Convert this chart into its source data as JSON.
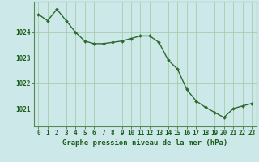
{
  "x": [
    0,
    1,
    2,
    3,
    4,
    5,
    6,
    7,
    8,
    9,
    10,
    11,
    12,
    13,
    14,
    15,
    16,
    17,
    18,
    19,
    20,
    21,
    22,
    23
  ],
  "y": [
    1024.7,
    1024.45,
    1024.9,
    1024.45,
    1024.0,
    1023.65,
    1023.55,
    1023.55,
    1023.6,
    1023.65,
    1023.75,
    1023.85,
    1023.85,
    1023.6,
    1022.9,
    1022.55,
    1021.75,
    1021.3,
    1021.05,
    1020.85,
    1020.65,
    1021.0,
    1021.1,
    1021.2
  ],
  "line_color": "#2d6a2d",
  "marker": "D",
  "marker_size": 2.0,
  "line_width": 1.0,
  "bg_color": "#cce8e8",
  "grid_color": "#a0c8a0",
  "xlabel": "Graphe pression niveau de la mer (hPa)",
  "xlabel_color": "#1a5c1a",
  "xlabel_fontsize": 6.5,
  "tick_color": "#1a5c1a",
  "tick_fontsize": 5.5,
  "ytick_labels": [
    "1021",
    "1022",
    "1023",
    "1024"
  ],
  "ytick_values": [
    1021,
    1022,
    1023,
    1024
  ],
  "ylim": [
    1020.3,
    1025.2
  ],
  "xlim": [
    -0.5,
    23.5
  ]
}
